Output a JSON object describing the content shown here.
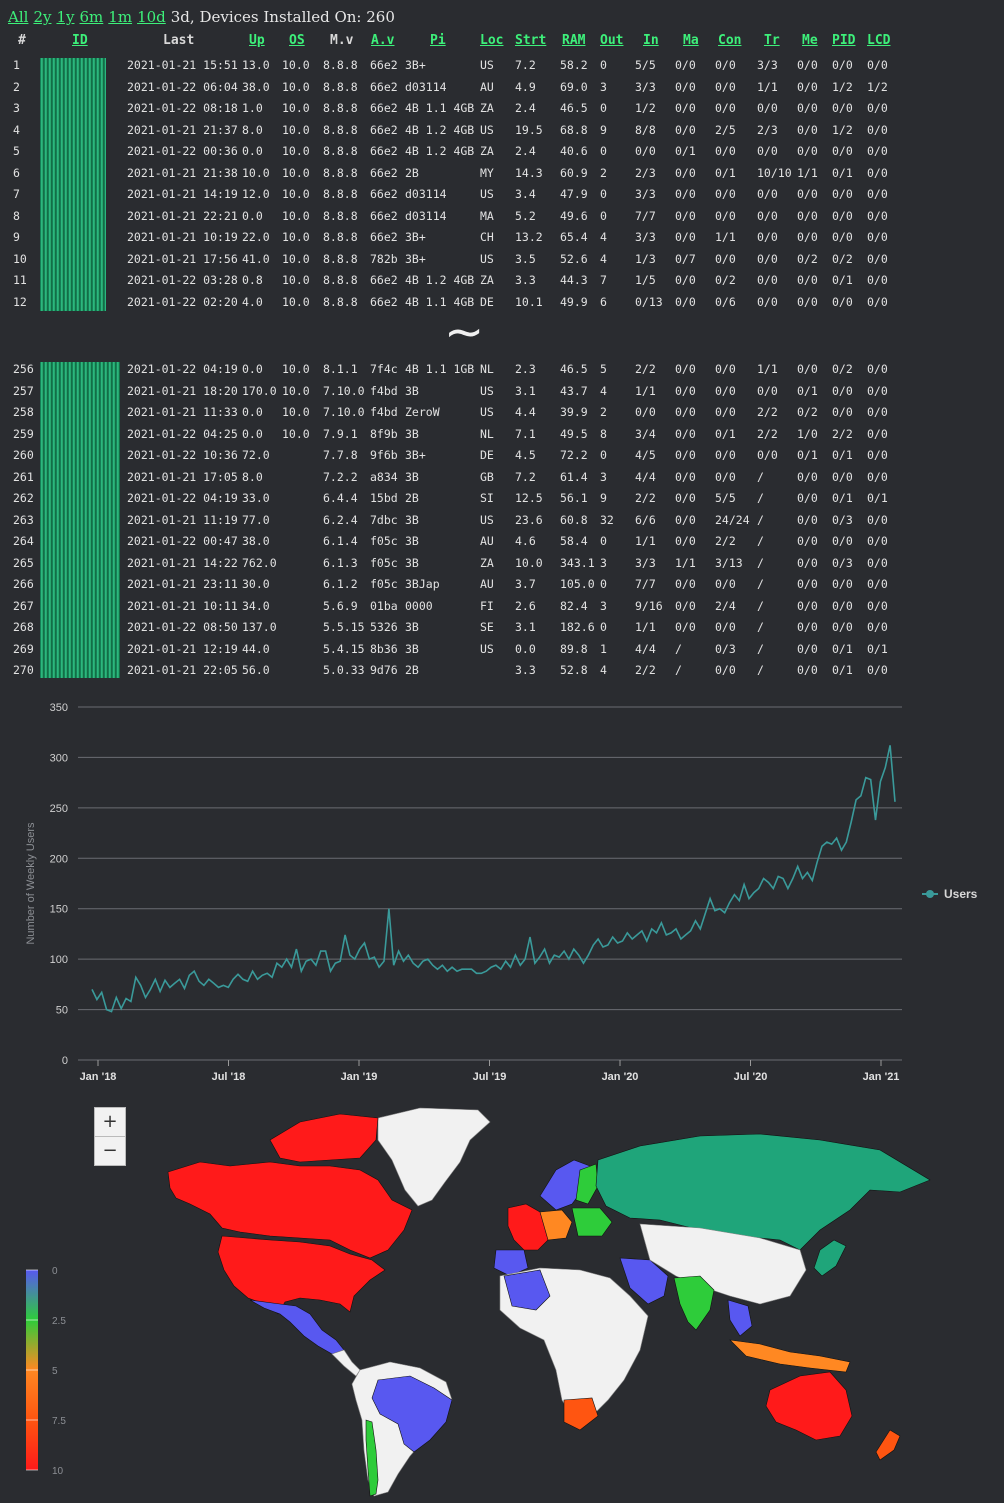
{
  "nav": {
    "links": [
      "All",
      "2y",
      "1y",
      "6m",
      "1m",
      "10d"
    ],
    "status": "3d, Devices Installed On: 260"
  },
  "table": {
    "headers": [
      {
        "label": "#",
        "link": false
      },
      {
        "label": "ID",
        "link": true
      },
      {
        "label": "Last",
        "link": false
      },
      {
        "label": "Up",
        "link": true
      },
      {
        "label": "OS",
        "link": true
      },
      {
        "label": "M.v",
        "link": false
      },
      {
        "label": "A.v",
        "link": true
      },
      {
        "label": "Pi",
        "link": true
      },
      {
        "label": "Loc",
        "link": true
      },
      {
        "label": "Strt",
        "link": true
      },
      {
        "label": "RAM",
        "link": true
      },
      {
        "label": "Out",
        "link": true
      },
      {
        "label": "In",
        "link": true
      },
      {
        "label": "Ma",
        "link": true
      },
      {
        "label": "Con",
        "link": true
      },
      {
        "label": "Tr",
        "link": true
      },
      {
        "label": "Me",
        "link": true
      },
      {
        "label": "PID",
        "link": true
      },
      {
        "label": "LCD",
        "link": true
      }
    ],
    "rows_top": [
      [
        "1",
        "2021-01-21 15:51",
        "13.0",
        "10.0",
        "8.8.8",
        "66e2",
        "3B+",
        "US",
        "7.2",
        "58.2",
        "0",
        "5/5",
        "0/0",
        "0/0",
        "3/3",
        "0/0",
        "0/0",
        "0/0"
      ],
      [
        "2",
        "2021-01-22 06:04",
        "38.0",
        "10.0",
        "8.8.8",
        "66e2",
        "d03114",
        "AU",
        "4.9",
        "69.0",
        "3",
        "3/3",
        "0/0",
        "0/0",
        "1/1",
        "0/0",
        "1/2",
        "1/2"
      ],
      [
        "3",
        "2021-01-22 08:18",
        "1.0",
        "10.0",
        "8.8.8",
        "66e2",
        "4B 1.1 4GB",
        "ZA",
        "2.4",
        "46.5",
        "0",
        "1/2",
        "0/0",
        "0/0",
        "0/0",
        "0/0",
        "0/0",
        "0/0"
      ],
      [
        "4",
        "2021-01-21 21:37",
        "8.0",
        "10.0",
        "8.8.8",
        "66e2",
        "4B 1.2 4GB",
        "US",
        "19.5",
        "68.8",
        "9",
        "8/8",
        "0/0",
        "2/5",
        "2/3",
        "0/0",
        "1/2",
        "0/0"
      ],
      [
        "5",
        "2021-01-22 00:36",
        "0.0",
        "10.0",
        "8.8.8",
        "66e2",
        "4B 1.2 4GB",
        "ZA",
        "2.4",
        "40.6",
        "0",
        "0/0",
        "0/1",
        "0/0",
        "0/0",
        "0/0",
        "0/0",
        "0/0"
      ],
      [
        "6",
        "2021-01-21 21:38",
        "10.0",
        "10.0",
        "8.8.8",
        "66e2",
        "2B",
        "MY",
        "14.3",
        "60.9",
        "2",
        "2/3",
        "0/0",
        "0/1",
        "10/10",
        "1/1",
        "0/1",
        "0/0"
      ],
      [
        "7",
        "2021-01-21 14:19",
        "12.0",
        "10.0",
        "8.8.8",
        "66e2",
        "d03114",
        "US",
        "3.4",
        "47.9",
        "0",
        "3/3",
        "0/0",
        "0/0",
        "0/0",
        "0/0",
        "0/0",
        "0/0"
      ],
      [
        "8",
        "2021-01-21 22:21",
        "0.0",
        "10.0",
        "8.8.8",
        "66e2",
        "d03114",
        "MA",
        "5.2",
        "49.6",
        "0",
        "7/7",
        "0/0",
        "0/0",
        "0/0",
        "0/0",
        "0/0",
        "0/0"
      ],
      [
        "9",
        "2021-01-21 10:19",
        "22.0",
        "10.0",
        "8.8.8",
        "66e2",
        "3B+",
        "CH",
        "13.2",
        "65.4",
        "4",
        "3/3",
        "0/0",
        "1/1",
        "0/0",
        "0/0",
        "0/0",
        "0/0"
      ],
      [
        "10",
        "2021-01-21 17:56",
        "41.0",
        "10.0",
        "8.8.8",
        "782b",
        "3B+",
        "US",
        "3.5",
        "52.6",
        "4",
        "1/3",
        "0/7",
        "0/0",
        "0/0",
        "0/2",
        "0/2",
        "0/0"
      ],
      [
        "11",
        "2021-01-22 03:28",
        "0.8",
        "10.0",
        "8.8.8",
        "66e2",
        "4B 1.2 4GB",
        "ZA",
        "3.3",
        "44.3",
        "7",
        "1/5",
        "0/0",
        "0/2",
        "0/0",
        "0/0",
        "0/1",
        "0/0"
      ],
      [
        "12",
        "2021-01-22 02:20",
        "4.0",
        "10.0",
        "8.8.8",
        "66e2",
        "4B 1.1 4GB",
        "DE",
        "10.1",
        "49.9",
        "6",
        "0/13",
        "0/0",
        "0/6",
        "0/0",
        "0/0",
        "0/0",
        "0/0"
      ]
    ],
    "divider": "~",
    "rows_bottom": [
      [
        "256",
        "2021-01-22 04:19",
        "0.0",
        "10.0",
        "8.1.1",
        "7f4c",
        "4B 1.1 1GB",
        "NL",
        "2.3",
        "46.5",
        "5",
        "2/2",
        "0/0",
        "0/0",
        "1/1",
        "0/0",
        "0/2",
        "0/0"
      ],
      [
        "257",
        "2021-01-21 18:20",
        "170.0",
        "10.0",
        "7.10.0",
        "f4bd",
        "3B",
        "US",
        "3.1",
        "43.7",
        "4",
        "1/1",
        "0/0",
        "0/0",
        "0/0",
        "0/1",
        "0/0",
        "0/0"
      ],
      [
        "258",
        "2021-01-21 11:33",
        "0.0",
        "10.0",
        "7.10.0",
        "f4bd",
        "ZeroW",
        "US",
        "4.4",
        "39.9",
        "2",
        "0/0",
        "0/0",
        "0/0",
        "2/2",
        "0/2",
        "0/0",
        "0/0"
      ],
      [
        "259",
        "2021-01-22 04:25",
        "0.0",
        "10.0",
        "7.9.1",
        "8f9b",
        "3B",
        "NL",
        "7.1",
        "49.5",
        "8",
        "3/4",
        "0/0",
        "0/1",
        "2/2",
        "1/0",
        "2/2",
        "0/0"
      ],
      [
        "260",
        "2021-01-22 10:36",
        "72.0",
        "",
        "7.7.8",
        "9f6b",
        "3B+",
        "DE",
        "4.5",
        "72.2",
        "0",
        "4/5",
        "0/0",
        "0/0",
        "0/0",
        "0/1",
        "0/1",
        "0/0"
      ],
      [
        "261",
        "2021-01-21 17:05",
        "8.0",
        "",
        "7.2.2",
        "a834",
        "3B",
        "GB",
        "7.2",
        "61.4",
        "3",
        "4/4",
        "0/0",
        "0/0",
        "/",
        "0/0",
        "0/0",
        "0/0"
      ],
      [
        "262",
        "2021-01-22 04:19",
        "33.0",
        "",
        "6.4.4",
        "15bd",
        "2B",
        "SI",
        "12.5",
        "56.1",
        "9",
        "2/2",
        "0/0",
        "5/5",
        "/",
        "0/0",
        "0/1",
        "0/1"
      ],
      [
        "263",
        "2021-01-21 11:19",
        "77.0",
        "",
        "6.2.4",
        "7dbc",
        "3B",
        "US",
        "23.6",
        "60.8",
        "32",
        "6/6",
        "0/0",
        "24/24",
        "/",
        "0/0",
        "0/3",
        "0/0"
      ],
      [
        "264",
        "2021-01-22 00:47",
        "38.0",
        "",
        "6.1.4",
        "f05c",
        "3B",
        "AU",
        "4.6",
        "58.4",
        "0",
        "1/1",
        "0/0",
        "2/2",
        "/",
        "0/0",
        "0/0",
        "0/0"
      ],
      [
        "265",
        "2021-01-21 14:22",
        "762.0",
        "",
        "6.1.3",
        "f05c",
        "3B",
        "ZA",
        "10.0",
        "343.1",
        "3",
        "3/3",
        "1/1",
        "3/13",
        "/",
        "0/0",
        "0/3",
        "0/0"
      ],
      [
        "266",
        "2021-01-21 23:11",
        "30.0",
        "",
        "6.1.2",
        "f05c",
        "3BJap",
        "AU",
        "3.7",
        "105.0",
        "0",
        "7/7",
        "0/0",
        "0/0",
        "/",
        "0/0",
        "0/0",
        "0/0"
      ],
      [
        "267",
        "2021-01-21 10:11",
        "34.0",
        "",
        "5.6.9",
        "01ba",
        "0000",
        "FI",
        "2.6",
        "82.4",
        "3",
        "9/16",
        "0/0",
        "2/4",
        "/",
        "0/0",
        "0/0",
        "0/0"
      ],
      [
        "268",
        "2021-01-22 08:50",
        "137.0",
        "",
        "5.5.15",
        "5326",
        "3B",
        "SE",
        "3.1",
        "182.6",
        "0",
        "1/1",
        "0/0",
        "0/0",
        "/",
        "0/0",
        "0/0",
        "0/0"
      ],
      [
        "269",
        "2021-01-21 12:19",
        "44.0",
        "",
        "5.4.15",
        "8b36",
        "3B",
        "US",
        "0.0",
        "89.8",
        "1",
        "4/4",
        "/",
        "0/3",
        "/",
        "0/0",
        "0/1",
        "0/1"
      ],
      [
        "270",
        "2021-01-21 22:05",
        "56.0",
        "",
        "5.0.33",
        "9d76",
        "2B",
        "",
        "3.3",
        "52.8",
        "4",
        "2/2",
        "/",
        "0/0",
        "/",
        "0/0",
        "0/1",
        "0/0"
      ]
    ]
  },
  "chart_data": {
    "type": "line",
    "ylabel": "Number of Weekly Users",
    "ylim": [
      0,
      350
    ],
    "yticks": [
      0,
      50,
      100,
      150,
      200,
      250,
      300,
      350
    ],
    "xticks": [
      "Jan '18",
      "Jul '18",
      "Jan '19",
      "Jul '19",
      "Jan '20",
      "Jul '20",
      "Jan '21"
    ],
    "series": [
      {
        "name": "Users",
        "color": "#3a9a9a",
        "values": [
          70,
          60,
          67,
          50,
          48,
          62,
          51,
          61,
          58,
          82,
          74,
          62,
          70,
          80,
          68,
          79,
          72,
          76,
          80,
          71,
          84,
          88,
          78,
          74,
          80,
          76,
          72,
          74,
          72,
          80,
          85,
          80,
          78,
          88,
          80,
          84,
          86,
          82,
          96,
          92,
          100,
          92,
          110,
          88,
          98,
          100,
          94,
          108,
          108,
          88,
          96,
          98,
          124,
          104,
          100,
          110,
          116,
          100,
          102,
          92,
          98,
          150,
          94,
          108,
          98,
          104,
          96,
          92,
          98,
          100,
          94,
          90,
          94,
          88,
          92,
          88,
          90,
          90,
          90,
          86,
          86,
          88,
          92,
          94,
          90,
          98,
          92,
          104,
          94,
          100,
          122,
          96,
          102,
          110,
          96,
          104,
          102,
          108,
          100,
          110,
          104,
          96,
          104,
          114,
          120,
          112,
          114,
          122,
          116,
          118,
          126,
          120,
          124,
          128,
          118,
          130,
          126,
          136,
          124,
          126,
          130,
          120,
          124,
          128,
          138,
          130,
          145,
          160,
          148,
          150,
          146,
          156,
          164,
          158,
          174,
          160,
          166,
          170,
          180,
          176,
          170,
          182,
          180,
          170,
          180,
          192,
          180,
          186,
          178,
          196,
          212,
          216,
          214,
          220,
          208,
          216,
          236,
          258,
          262,
          280,
          278,
          238,
          276,
          290,
          312,
          256
        ]
      }
    ],
    "legend": {
      "position": "right",
      "label": "Users"
    }
  },
  "map": {
    "zoom_in_label": "+",
    "zoom_out_label": "−",
    "scale_ticks": [
      "0",
      "2.5",
      "5",
      "7.5",
      "10"
    ],
    "scale_colors": [
      "#5858f0",
      "#2ecc3a",
      "#ff8822",
      "#ff5511",
      "#ff1a1a"
    ]
  }
}
